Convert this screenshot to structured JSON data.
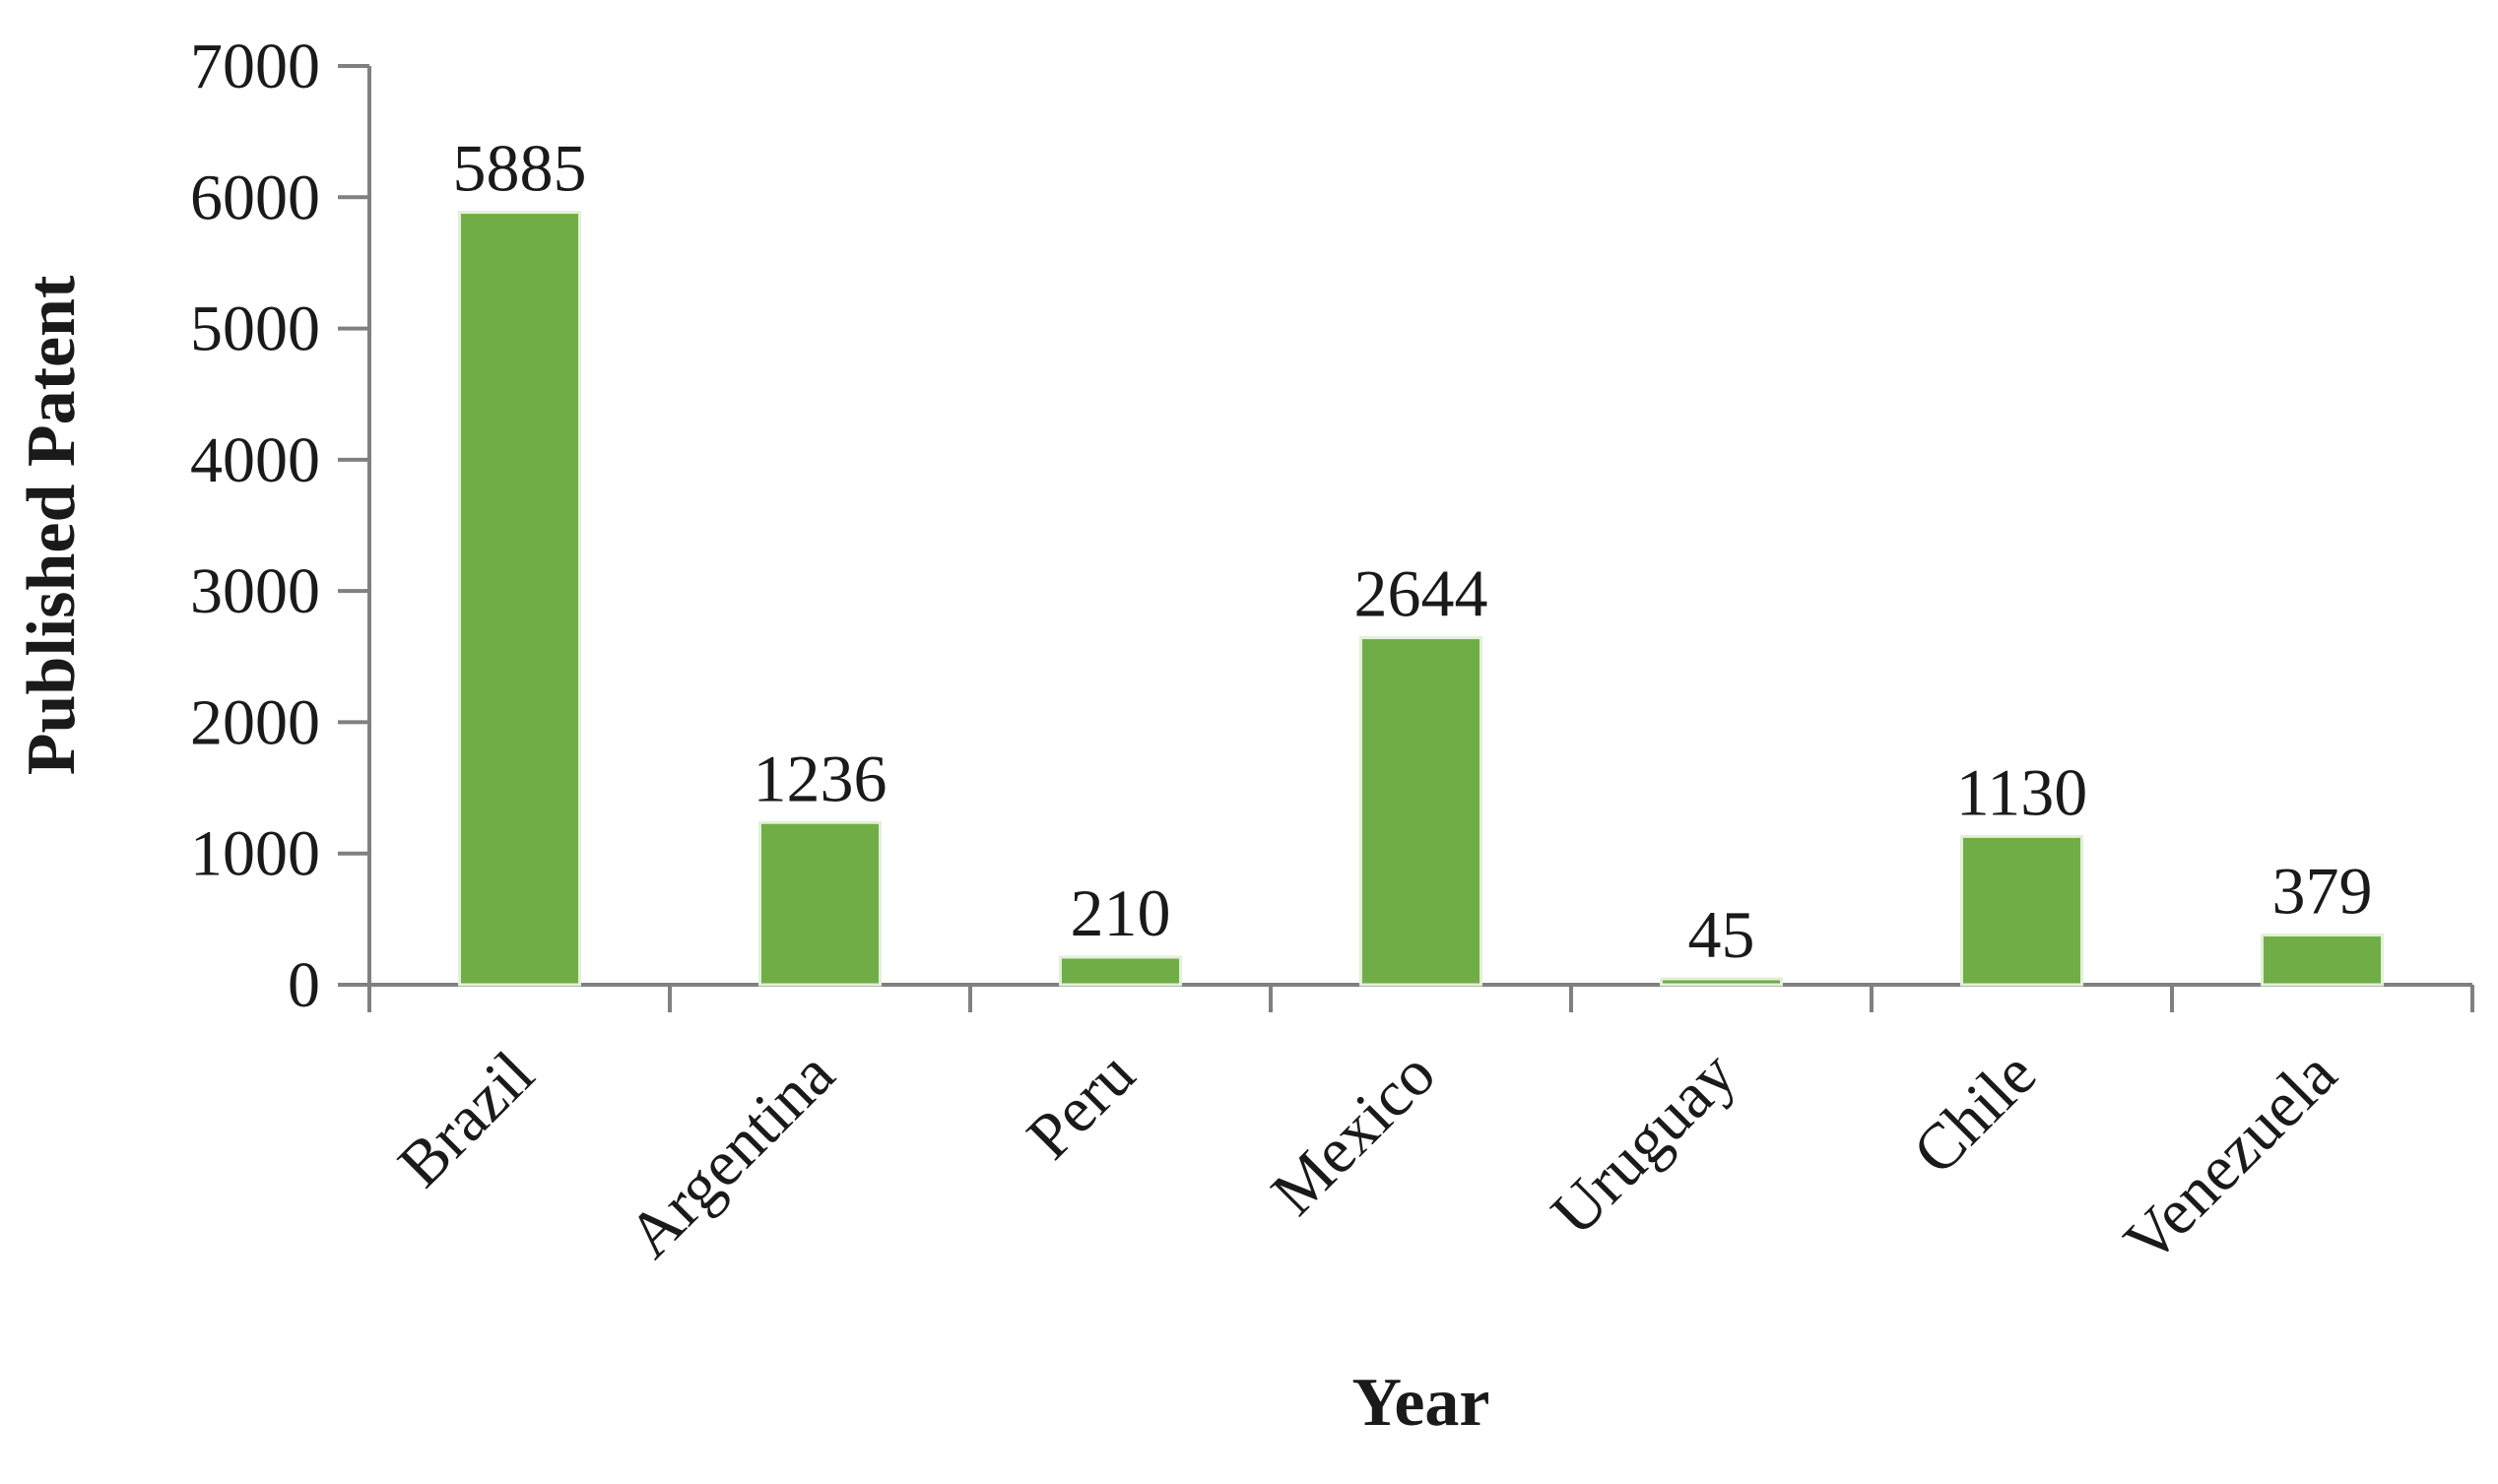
{
  "chart_data": {
    "type": "bar",
    "categories": [
      "Brazil",
      "Argentina",
      "Peru",
      "Mexico",
      "Uruguay",
      "Chile",
      "Venezuela"
    ],
    "values": [
      5885,
      1236,
      210,
      2644,
      45,
      1130,
      379
    ],
    "data_labels": [
      "5885",
      "1236",
      "210",
      "2644",
      "45",
      "1130",
      "379"
    ],
    "xlabel": "Year",
    "ylabel": "Published Patent",
    "ylim": [
      0,
      7000
    ],
    "yticks": [
      0,
      1000,
      2000,
      3000,
      4000,
      5000,
      6000,
      7000
    ],
    "ytick_labels": [
      "0",
      "1000",
      "2000",
      "3000",
      "4000",
      "5000",
      "6000",
      "7000"
    ],
    "bar_color": "#70ad47",
    "grid": false,
    "legend": "none"
  }
}
